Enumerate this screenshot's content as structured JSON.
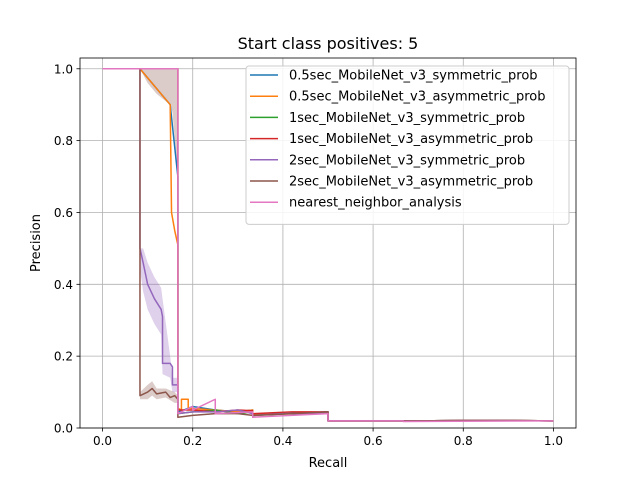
{
  "chart_data": {
    "type": "line",
    "title": "Start class positives: 5",
    "xlabel": "Recall",
    "ylabel": "Precision",
    "xlim": [
      -0.05,
      1.05
    ],
    "ylim": [
      0.0,
      1.03
    ],
    "xticks": [
      0.0,
      0.2,
      0.4,
      0.6,
      0.8,
      1.0
    ],
    "xtick_labels": [
      "0.0",
      "0.2",
      "0.4",
      "0.6",
      "0.8",
      "1.0"
    ],
    "yticks": [
      0.0,
      0.2,
      0.4,
      0.6,
      0.8,
      1.0
    ],
    "ytick_labels": [
      "0.0",
      "0.2",
      "0.4",
      "0.6",
      "0.8",
      "1.0"
    ],
    "grid": true,
    "legend_position": "top-right",
    "series": [
      {
        "name": "0.5sec_MobileNet_v3_symmetric_prob",
        "color": "#1f77b4",
        "x": [
          0.0,
          0.083,
          0.15,
          0.167,
          0.167,
          0.18,
          0.2,
          0.25,
          0.3,
          0.333,
          0.333,
          0.4,
          0.45,
          0.5,
          0.5,
          0.6,
          0.7,
          0.8,
          0.9,
          1.0
        ],
        "y": [
          1.0,
          1.0,
          0.9,
          0.7,
          0.045,
          0.05,
          0.06,
          0.05,
          0.045,
          0.05,
          0.038,
          0.04,
          0.042,
          0.045,
          0.02,
          0.02,
          0.02,
          0.021,
          0.021,
          0.02
        ]
      },
      {
        "name": "0.5sec_MobileNet_v3_asymmetric_prob",
        "color": "#ff7f0e",
        "x": [
          0.0,
          0.083,
          0.15,
          0.153,
          0.16,
          0.167,
          0.167,
          0.175,
          0.175,
          0.19,
          0.19,
          0.25,
          0.3,
          0.333,
          0.333,
          0.45,
          0.5,
          0.5,
          0.6,
          0.7,
          0.8,
          0.9,
          1.0
        ],
        "y": [
          1.0,
          1.0,
          0.9,
          0.6,
          0.55,
          0.51,
          0.055,
          0.05,
          0.08,
          0.08,
          0.055,
          0.05,
          0.045,
          0.05,
          0.038,
          0.04,
          0.04,
          0.02,
          0.02,
          0.02,
          0.021,
          0.021,
          0.02
        ]
      },
      {
        "name": "1sec_MobileNet_v3_symmetric_prob",
        "color": "#2ca02c",
        "x": [
          0.0,
          0.083,
          0.167,
          0.167,
          0.2,
          0.25,
          0.3,
          0.333,
          0.333,
          0.42,
          0.5,
          0.5,
          0.6,
          0.7,
          0.8,
          0.9,
          1.0
        ],
        "y": [
          1.0,
          1.0,
          1.0,
          0.04,
          0.045,
          0.05,
          0.04,
          0.045,
          0.035,
          0.04,
          0.04,
          0.02,
          0.02,
          0.02,
          0.021,
          0.021,
          0.02
        ]
      },
      {
        "name": "1sec_MobileNet_v3_asymmetric_prob",
        "color": "#d62728",
        "x": [
          0.0,
          0.083,
          0.167,
          0.167,
          0.2,
          0.25,
          0.3,
          0.333,
          0.333,
          0.42,
          0.5,
          0.5,
          0.6,
          0.7,
          0.8,
          0.9,
          1.0
        ],
        "y": [
          1.0,
          1.0,
          1.0,
          0.05,
          0.05,
          0.045,
          0.05,
          0.048,
          0.04,
          0.045,
          0.045,
          0.02,
          0.02,
          0.02,
          0.021,
          0.021,
          0.02
        ]
      },
      {
        "name": "2sec_MobileNet_v3_symmetric_prob",
        "color": "#9467bd",
        "x": [
          0.0,
          0.083,
          0.083,
          0.09,
          0.1,
          0.115,
          0.13,
          0.133,
          0.133,
          0.15,
          0.155,
          0.155,
          0.167,
          0.167,
          0.2,
          0.25,
          0.3,
          0.333,
          0.333,
          0.4,
          0.5,
          0.5,
          0.6,
          0.7,
          0.8,
          0.9,
          1.0
        ],
        "y": [
          1.0,
          1.0,
          0.5,
          0.46,
          0.4,
          0.36,
          0.33,
          0.31,
          0.18,
          0.18,
          0.17,
          0.12,
          0.12,
          0.04,
          0.045,
          0.045,
          0.05,
          0.04,
          0.035,
          0.04,
          0.04,
          0.02,
          0.02,
          0.02,
          0.021,
          0.021,
          0.02
        ]
      },
      {
        "name": "2sec_MobileNet_v3_asymmetric_prob",
        "color": "#8c564b",
        "x": [
          0.0,
          0.083,
          0.083,
          0.1,
          0.11,
          0.12,
          0.14,
          0.15,
          0.16,
          0.167,
          0.167,
          0.2,
          0.25,
          0.3,
          0.333,
          0.333,
          0.42,
          0.5,
          0.5,
          0.6,
          0.7,
          0.8,
          0.9,
          1.0
        ],
        "y": [
          1.0,
          1.0,
          0.09,
          0.1,
          0.11,
          0.095,
          0.1,
          0.085,
          0.09,
          0.08,
          0.03,
          0.035,
          0.04,
          0.04,
          0.035,
          0.035,
          0.04,
          0.045,
          0.02,
          0.02,
          0.02,
          0.021,
          0.021,
          0.02
        ]
      },
      {
        "name": "nearest_neighbor_analysis",
        "color": "#e377c2",
        "x": [
          0.0,
          0.083,
          0.167,
          0.167,
          0.2,
          0.2,
          0.25,
          0.25,
          0.333,
          0.333,
          0.5,
          0.5,
          0.667,
          0.667,
          1.0
        ],
        "y": [
          1.0,
          1.0,
          1.0,
          0.04,
          0.06,
          0.05,
          0.08,
          0.04,
          0.045,
          0.03,
          0.04,
          0.02,
          0.02,
          0.018,
          0.02
        ]
      }
    ],
    "bands": [
      {
        "series": "2sec_MobileNet_v3_asymmetric_prob",
        "color": "#8c564b",
        "x": [
          0.083,
          0.1,
          0.12,
          0.15,
          0.155,
          0.167
        ],
        "lower": [
          1.0,
          0.96,
          0.93,
          0.9,
          0.88,
          0.7
        ],
        "upper": [
          1.0,
          1.0,
          1.0,
          1.0,
          1.0,
          1.0
        ]
      },
      {
        "series": "2sec_MobileNet_v3_asymmetric_prob",
        "color": "#8c564b",
        "x": [
          0.083,
          0.1,
          0.11,
          0.12,
          0.14,
          0.16,
          0.167
        ],
        "lower": [
          0.08,
          0.08,
          0.09,
          0.08,
          0.085,
          0.07,
          0.07
        ],
        "upper": [
          0.1,
          0.12,
          0.13,
          0.11,
          0.11,
          0.1,
          0.09
        ]
      },
      {
        "series": "2sec_MobileNet_v3_symmetric_prob",
        "color": "#9467bd",
        "x": [
          0.083,
          0.09,
          0.1,
          0.115,
          0.13,
          0.133,
          0.15,
          0.155,
          0.167
        ],
        "lower": [
          0.44,
          0.38,
          0.33,
          0.29,
          0.26,
          0.15,
          0.14,
          0.1,
          0.1
        ],
        "upper": [
          0.5,
          0.5,
          0.46,
          0.42,
          0.39,
          0.36,
          0.2,
          0.14,
          0.14
        ]
      }
    ]
  }
}
